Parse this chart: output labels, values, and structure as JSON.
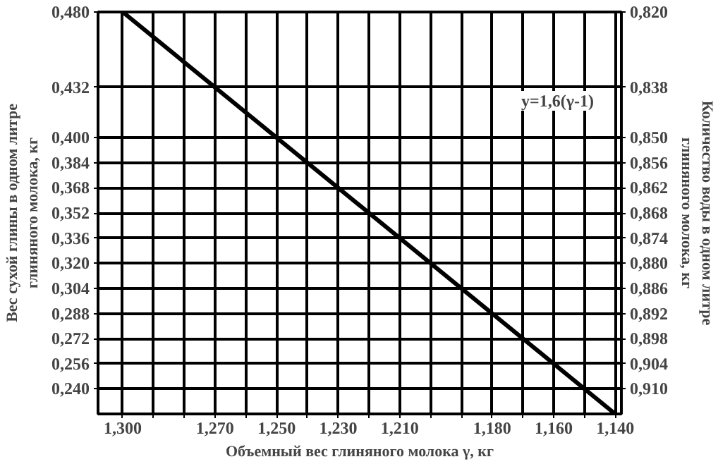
{
  "chart_data": {
    "type": "line",
    "xlabel": "Объемный вес глиняного молока γ, кг",
    "ylabel": "Вес сухой глины в одном литре\nглиняного молока, кг",
    "y2label": "Количество воды в одном литре\nглиняного молока, кг",
    "annotations": [
      "y=1,6(γ-1)"
    ],
    "series": [
      {
        "color": "#000000",
        "x": [
          1.3,
          1.14
        ],
        "values": [
          0.48,
          0.224
        ]
      }
    ],
    "xlim": [
      1.308,
      1.138
    ],
    "xticks": [
      {
        "value": 1.3,
        "label": "1,300"
      },
      {
        "value": 1.29,
        "label": null
      },
      {
        "value": 1.28,
        "label": null
      },
      {
        "value": 1.27,
        "label": "1,270"
      },
      {
        "value": 1.26,
        "label": null
      },
      {
        "value": 1.25,
        "label": "1,250"
      },
      {
        "value": 1.24,
        "label": null
      },
      {
        "value": 1.23,
        "label": "1,230"
      },
      {
        "value": 1.22,
        "label": null
      },
      {
        "value": 1.21,
        "label": "1,210"
      },
      {
        "value": 1.2,
        "label": null
      },
      {
        "value": 1.19,
        "label": null
      },
      {
        "value": 1.18,
        "label": "1,180"
      },
      {
        "value": 1.17,
        "label": null
      },
      {
        "value": 1.16,
        "label": "1,160"
      },
      {
        "value": 1.15,
        "label": null
      },
      {
        "value": 1.14,
        "label": "1,140"
      }
    ],
    "ylim": [
      0.224,
      0.48
    ],
    "yticks": [
      {
        "value": 0.48,
        "label": "0,480"
      },
      {
        "value": 0.432,
        "label": "0,432"
      },
      {
        "value": 0.4,
        "label": "0,400"
      },
      {
        "value": 0.384,
        "label": "0,384"
      },
      {
        "value": 0.368,
        "label": "0,368"
      },
      {
        "value": 0.352,
        "label": "0,352"
      },
      {
        "value": 0.336,
        "label": "0,336"
      },
      {
        "value": 0.32,
        "label": "0,320"
      },
      {
        "value": 0.304,
        "label": "0,304"
      },
      {
        "value": 0.288,
        "label": "0,288"
      },
      {
        "value": 0.272,
        "label": "0,272"
      },
      {
        "value": 0.256,
        "label": "0,256"
      },
      {
        "value": 0.24,
        "label": "0,240"
      }
    ],
    "y2lim": [
      0.916,
      0.82
    ],
    "y2ticks": [
      {
        "value": 0.82,
        "label": "0,820"
      },
      {
        "value": 0.838,
        "label": "0,838"
      },
      {
        "value": 0.85,
        "label": "0,850"
      },
      {
        "value": 0.856,
        "label": "0,856"
      },
      {
        "value": 0.862,
        "label": "0,862"
      },
      {
        "value": 0.868,
        "label": "0,868"
      },
      {
        "value": 0.874,
        "label": "0,874"
      },
      {
        "value": 0.88,
        "label": "0,880"
      },
      {
        "value": 0.886,
        "label": "0,886"
      },
      {
        "value": 0.892,
        "label": "0,892"
      },
      {
        "value": 0.898,
        "label": "0,898"
      },
      {
        "value": 0.904,
        "label": "0,904"
      },
      {
        "value": 0.91,
        "label": "0,910"
      }
    ],
    "grid": true,
    "line_style": "solid"
  }
}
